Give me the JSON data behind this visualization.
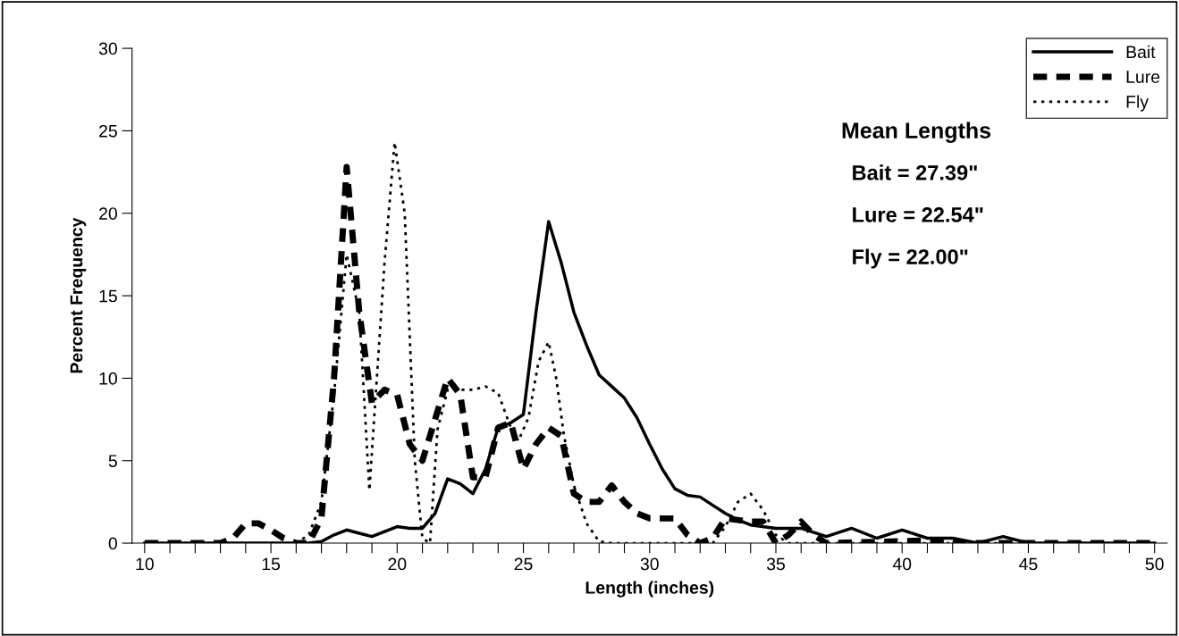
{
  "chart_data": {
    "type": "line",
    "xlabel": "Length (inches)",
    "ylabel": "Percent Frequency",
    "xlim": [
      9.5,
      50.5
    ],
    "ylim": [
      0,
      30
    ],
    "xticks": [
      10,
      {
        "value": 11,
        "label": null
      },
      {
        "value": 12,
        "label": null
      },
      {
        "value": 13,
        "label": null
      },
      {
        "value": 14,
        "label": null
      },
      15,
      {
        "value": 16,
        "label": null
      },
      {
        "value": 17,
        "label": null
      },
      {
        "value": 18,
        "label": null
      },
      {
        "value": 19,
        "label": null
      },
      20,
      {
        "value": 21,
        "label": null
      },
      {
        "value": 22,
        "label": null
      },
      {
        "value": 23,
        "label": null
      },
      {
        "value": 24,
        "label": null
      },
      25,
      {
        "value": 26,
        "label": null
      },
      {
        "value": 27,
        "label": null
      },
      {
        "value": 28,
        "label": null
      },
      {
        "value": 29,
        "label": null
      },
      30,
      {
        "value": 31,
        "label": null
      },
      {
        "value": 32,
        "label": null
      },
      {
        "value": 33,
        "label": null
      },
      {
        "value": 34,
        "label": null
      },
      35,
      {
        "value": 36,
        "label": null
      },
      {
        "value": 37,
        "label": null
      },
      {
        "value": 38,
        "label": null
      },
      {
        "value": 39,
        "label": null
      },
      40,
      {
        "value": 41,
        "label": null
      },
      {
        "value": 42,
        "label": null
      },
      {
        "value": 43,
        "label": null
      },
      {
        "value": 44,
        "label": null
      },
      45,
      {
        "value": 46,
        "label": null
      },
      {
        "value": 47,
        "label": null
      },
      {
        "value": 48,
        "label": null
      },
      {
        "value": 49,
        "label": null
      },
      50
    ],
    "yticks": [
      0,
      5,
      10,
      15,
      20,
      25,
      30
    ],
    "grid": false,
    "legend": "top right",
    "marker": "none",
    "annotations": [
      "Mean Lengths",
      "Bait = 27.39\"",
      "Lure = 22.54\"",
      "Fly = 22.00\""
    ],
    "series": [
      {
        "name": "Bait",
        "color": "#000000",
        "line_style": "solid",
        "x": [
          10,
          16.5,
          17,
          17.5,
          18,
          18.5,
          19,
          19.5,
          20,
          20.5,
          21,
          21.5,
          22,
          22.5,
          23,
          23.5,
          24,
          24.5,
          25,
          25.5,
          26,
          26.5,
          27,
          27.5,
          28,
          28.5,
          29,
          29.5,
          30,
          30.5,
          31,
          31.5,
          32,
          32.5,
          33,
          33.5,
          34,
          35,
          36,
          37,
          38,
          39,
          40,
          41,
          42,
          43,
          44,
          45,
          50
        ],
        "values": [
          0,
          0,
          0.1,
          0.5,
          0.8,
          0.6,
          0.4,
          0.7,
          1.0,
          0.9,
          0.9,
          1.8,
          3.9,
          3.6,
          3.0,
          4.5,
          7.0,
          7.3,
          7.8,
          14,
          19.5,
          17,
          14,
          12,
          10.2,
          9.5,
          8.8,
          7.6,
          6.0,
          4.5,
          3.3,
          2.9,
          2.8,
          2.3,
          1.8,
          1.4,
          1.1,
          0.9,
          0.9,
          0.4,
          0.9,
          0.3,
          0.8,
          0.3,
          0.3,
          0,
          0.4,
          0,
          0
        ]
      },
      {
        "name": "Lure",
        "color": "#000000",
        "line_style": "dashed",
        "x": [
          10,
          13,
          13.5,
          14,
          14.5,
          15,
          15.5,
          16,
          16.5,
          17,
          17.5,
          18,
          18.5,
          19,
          19.5,
          20,
          20.5,
          21,
          21.5,
          22,
          22.5,
          23,
          23.5,
          24,
          24.5,
          25,
          25.5,
          26,
          26.5,
          27,
          27.5,
          28,
          28.5,
          29,
          29.5,
          30,
          31,
          31.5,
          32,
          32.5,
          33,
          34,
          34.5,
          35,
          35.5,
          36,
          36.5,
          37,
          42,
          42.5,
          50
        ],
        "values": [
          0,
          0,
          0.3,
          1.2,
          1.2,
          0.8,
          0.3,
          0,
          0,
          1.5,
          10,
          22.8,
          14,
          8.5,
          9.3,
          9.0,
          6.0,
          5,
          7.5,
          10,
          9,
          4,
          4,
          7,
          7.3,
          4.5,
          6,
          7,
          6.5,
          3,
          2.5,
          2.5,
          3.5,
          2.5,
          1.8,
          1.5,
          1.5,
          0.5,
          0,
          0.3,
          1.5,
          1.3,
          1.3,
          0,
          0.5,
          1.3,
          0.5,
          0,
          0.2,
          0,
          0
        ]
      },
      {
        "name": "Fly",
        "color": "#000000",
        "line_style": "dotted",
        "x": [
          10,
          16,
          16.5,
          17,
          17.5,
          18,
          18.5,
          18.9,
          19.5,
          19.9,
          20.3,
          20.7,
          21,
          21.3,
          21.6,
          22,
          22.5,
          23,
          23.5,
          24,
          24.5,
          24.8,
          25.2,
          25.6,
          26,
          26.3,
          26.6,
          27,
          27.5,
          28,
          28.5,
          32.5,
          33,
          33.5,
          34,
          34.5,
          35,
          35.5,
          50
        ],
        "values": [
          0,
          0,
          0.5,
          2.5,
          9,
          17.5,
          14,
          3.2,
          17,
          24.3,
          20,
          5,
          0.3,
          0,
          6.9,
          9.3,
          9.3,
          9.3,
          9.5,
          9.1,
          7.0,
          6.2,
          7.6,
          11,
          12.2,
          10,
          6.6,
          3.5,
          1.2,
          0.1,
          0,
          0,
          1.0,
          2.5,
          3.0,
          2.0,
          0.5,
          0,
          0
        ]
      }
    ]
  }
}
